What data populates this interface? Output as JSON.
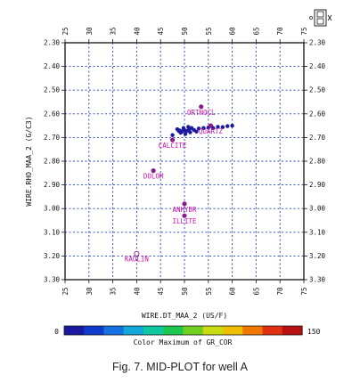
{
  "chart_data": {
    "type": "scatter",
    "xlabel": "WIRE.DT_MAA_2 (US/F)",
    "ylabel": "WIRE.RHO_MAA_2 (G/C3)",
    "xlim": [
      25,
      75
    ],
    "ylim": [
      2.3,
      3.3
    ],
    "y_inverted": true,
    "x_ticks": [
      25,
      30,
      35,
      40,
      45,
      50,
      55,
      60,
      65,
      70,
      75
    ],
    "x_tick_labels": [
      "25",
      "30",
      "35",
      "40",
      "45",
      "50",
      "55",
      "60",
      "65",
      "70",
      "75"
    ],
    "y_ticks": [
      2.3,
      2.4,
      2.5,
      2.6,
      2.7,
      2.8,
      2.9,
      3.0,
      3.1,
      3.2,
      3.3
    ],
    "y_tick_labels": [
      "2.30",
      "2.40",
      "2.50",
      "2.60",
      "2.70",
      "2.80",
      "2.90",
      "3.00",
      "3.10",
      "3.20",
      "3.30"
    ],
    "grid": true,
    "data_points": [
      {
        "x": 48.5,
        "y": 2.665
      },
      {
        "x": 49.0,
        "y": 2.67
      },
      {
        "x": 49.5,
        "y": 2.675
      },
      {
        "x": 50.0,
        "y": 2.668
      },
      {
        "x": 50.5,
        "y": 2.672
      },
      {
        "x": 51.0,
        "y": 2.665
      },
      {
        "x": 51.5,
        "y": 2.66
      },
      {
        "x": 52.0,
        "y": 2.668
      },
      {
        "x": 52.5,
        "y": 2.675
      },
      {
        "x": 49.2,
        "y": 2.68
      },
      {
        "x": 50.2,
        "y": 2.685
      },
      {
        "x": 51.2,
        "y": 2.678
      },
      {
        "x": 48.8,
        "y": 2.672
      },
      {
        "x": 53.0,
        "y": 2.662
      },
      {
        "x": 54.0,
        "y": 2.66
      },
      {
        "x": 55.0,
        "y": 2.658
      },
      {
        "x": 56.0,
        "y": 2.66
      },
      {
        "x": 57.0,
        "y": 2.655
      },
      {
        "x": 58.0,
        "y": 2.656
      },
      {
        "x": 59.0,
        "y": 2.652
      },
      {
        "x": 60.0,
        "y": 2.65
      },
      {
        "x": 47.5,
        "y": 2.69
      },
      {
        "x": 50.8,
        "y": 2.655
      },
      {
        "x": 49.8,
        "y": 2.66
      }
    ],
    "colorbar": {
      "min_label": "0",
      "max_label": "150",
      "label": "Color  Maximum of GR_COR",
      "colors": [
        "#1a1aa0",
        "#0f3ccc",
        "#1570e0",
        "#13a6d8",
        "#10c8a0",
        "#1cc850",
        "#70d020",
        "#c8dc10",
        "#f0c000",
        "#f07800",
        "#e03010",
        "#b81010"
      ]
    },
    "minerals": [
      {
        "name": "ORTHOCL",
        "x": 53.5,
        "y": 2.57
      },
      {
        "name": "QUARTZ",
        "x": 55.5,
        "y": 2.65
      },
      {
        "name": "CALCITE",
        "x": 47.5,
        "y": 2.71
      },
      {
        "name": "DOLOM",
        "x": 43.5,
        "y": 2.84
      },
      {
        "name": "ANHYDR",
        "x": 50.0,
        "y": 2.98
      },
      {
        "name": "ILLITE",
        "x": 50.0,
        "y": 3.03
      },
      {
        "name": "KAOLIN",
        "x": 40.0,
        "y": 3.19
      }
    ],
    "mineral_color": "#8b1a8b",
    "label_color": "#cc11aa",
    "point_color": "#1a1aa0"
  },
  "caption": "Fig. 7. MID-PLOT for well A"
}
